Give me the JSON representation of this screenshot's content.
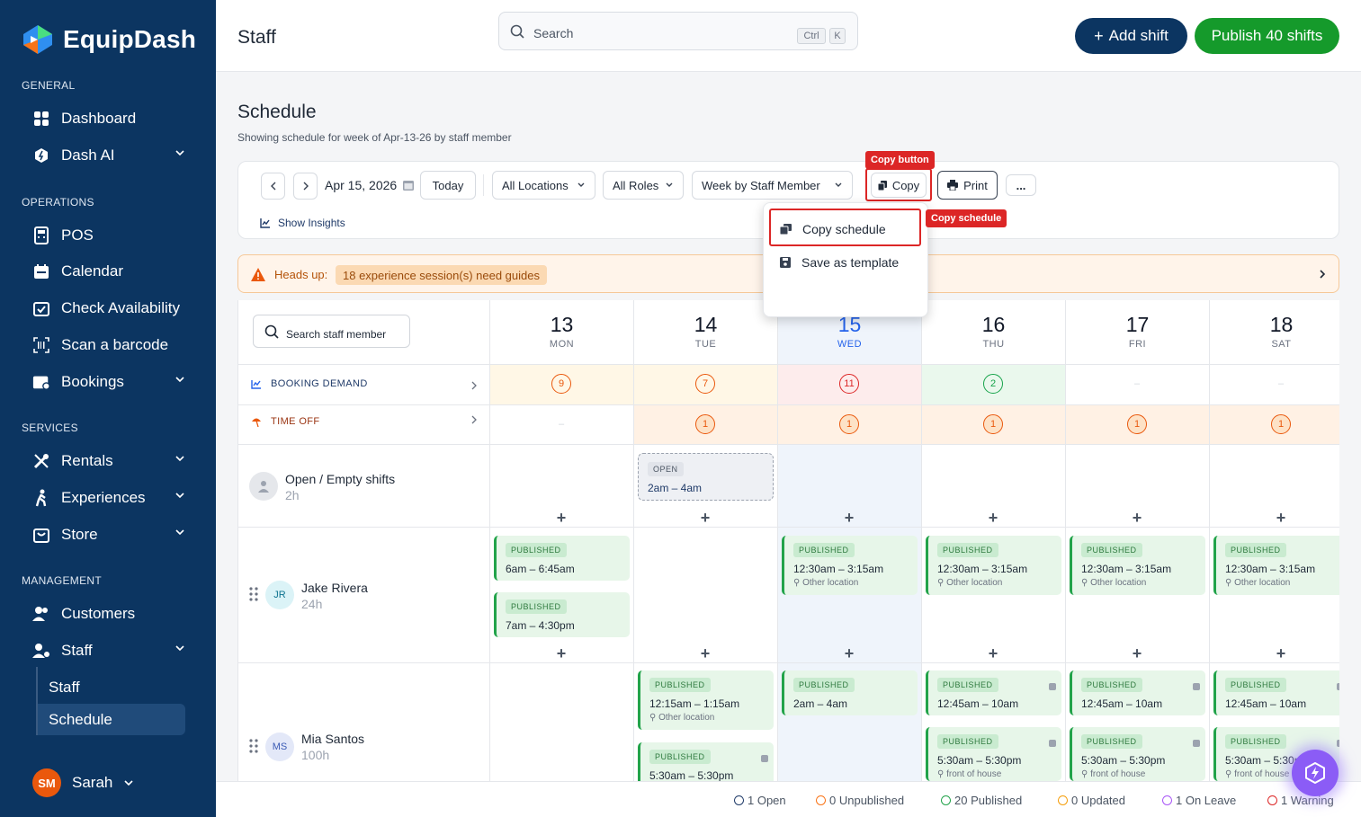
{
  "app": {
    "name": "EquipDash"
  },
  "sidebar": {
    "sections": {
      "general": "GENERAL",
      "operations": "OPERATIONS",
      "services": "SERVICES",
      "management": "MANAGEMENT"
    },
    "items": {
      "dashboard": "Dashboard",
      "dash_ai": "Dash AI",
      "pos": "POS",
      "calendar": "Calendar",
      "check_availability": "Check Availability",
      "scan_barcode": "Scan a barcode",
      "bookings": "Bookings",
      "rentals": "Rentals",
      "experiences": "Experiences",
      "store": "Store",
      "customers": "Customers",
      "staff": "Staff",
      "staff_sub": "Staff",
      "schedule_sub": "Schedule"
    },
    "user": {
      "initials": "SM",
      "name": "Sarah"
    }
  },
  "topbar": {
    "title": "Staff",
    "search_placeholder": "Search",
    "shortcut": [
      "Ctrl",
      "K"
    ],
    "add_shift": "Add shift",
    "publish": "Publish 40 shifts"
  },
  "schedule": {
    "title": "Schedule",
    "subtitle": "Showing schedule for week of Apr-13-26 by staff member"
  },
  "toolbar": {
    "date": "Apr 15, 2026",
    "today": "Today",
    "locations": "All Locations",
    "roles": "All Roles",
    "view": "Week by Staff Member",
    "copy": "Copy",
    "print": "Print",
    "more": "...",
    "insights": "Show Insights"
  },
  "annotations": {
    "copy_button": "Copy button",
    "copy_schedule": "Copy schedule"
  },
  "copy_menu": {
    "items": [
      "Copy schedule",
      "Save as template"
    ]
  },
  "headsup": {
    "label": "Heads up:",
    "message": "18 experience session(s) need guides"
  },
  "grid": {
    "search_staff_placeholder": "Search staff member",
    "days": [
      {
        "num": "13",
        "dow": "MON"
      },
      {
        "num": "14",
        "dow": "TUE"
      },
      {
        "num": "15",
        "dow": "WED"
      },
      {
        "num": "16",
        "dow": "THU"
      },
      {
        "num": "17",
        "dow": "FRI"
      },
      {
        "num": "18",
        "dow": "SAT"
      }
    ],
    "booking_demand": {
      "label": "BOOKING DEMAND",
      "values": [
        "9",
        "7",
        "11",
        "2",
        "–",
        "–"
      ]
    },
    "time_off": {
      "label": "TIME OFF",
      "values": [
        "–",
        "1",
        "1",
        "1",
        "1",
        "1"
      ]
    },
    "open_shifts": {
      "name": "Open / Empty shifts",
      "hours": "2h",
      "open_badge": "OPEN",
      "open_time": "2am – 4am"
    },
    "published_label": "PUBLISHED",
    "jake": {
      "initials": "JR",
      "name": "Jake Rivera",
      "hours": "24h",
      "mon": [
        "6am – 6:45am",
        "7am – 4:30pm"
      ],
      "other_time": "12:30am – 3:15am",
      "location": "Other location"
    },
    "mia": {
      "initials": "MS",
      "name": "Mia Santos",
      "hours": "100h",
      "tue": [
        "12:15am – 1:15am",
        "5:30am – 5:30pm"
      ],
      "tue_loc": "Other location",
      "wed": "2am – 4am",
      "thu_sat_1": "12:45am – 10am",
      "thu_sat_2": "5:30am – 5:30pm",
      "front": "front of house"
    }
  },
  "footer": {
    "legend": [
      {
        "label": "1 Open",
        "color": "#1f3a68"
      },
      {
        "label": "0 Unpublished",
        "color": "#f97316"
      },
      {
        "label": "20 Published",
        "color": "#22a34a"
      },
      {
        "label": "0 Updated",
        "color": "#f59e0b"
      },
      {
        "label": "1 On Leave",
        "color": "#a855f7"
      },
      {
        "label": "1 Warning",
        "color": "#dc2626"
      }
    ]
  }
}
